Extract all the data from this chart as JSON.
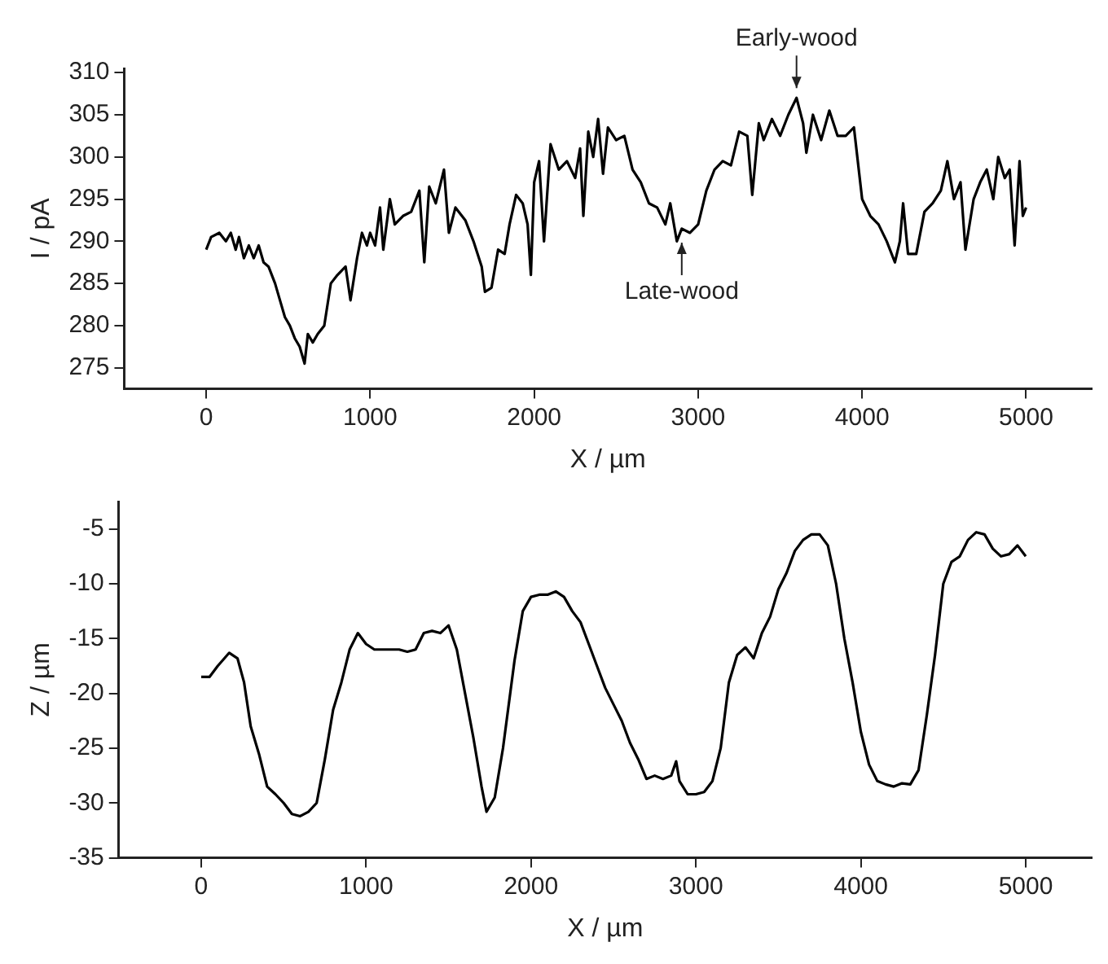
{
  "chart_data": [
    {
      "type": "line",
      "xlabel": "X / µm",
      "ylabel": "I / pA",
      "xlim": [
        -500,
        5400
      ],
      "xticks": [
        0,
        1000,
        2000,
        3000,
        4000,
        5000
      ],
      "ylim": [
        272.5,
        310.5
      ],
      "yticks": [
        275,
        280,
        285,
        290,
        295,
        300,
        305,
        310
      ],
      "grid": false,
      "legend": false,
      "marker": "none",
      "line_style": "solid",
      "annotations": [
        {
          "text": "Early-wood",
          "x": 3600,
          "y": 307
        },
        {
          "text": "Late-wood",
          "x": 2900,
          "y": 291
        }
      ],
      "series": [
        {
          "color": "#000000",
          "x": [
            0,
            30,
            80,
            120,
            150,
            180,
            200,
            230,
            260,
            290,
            320,
            350,
            380,
            420,
            450,
            480,
            510,
            540,
            570,
            600,
            620,
            650,
            680,
            720,
            760,
            800,
            850,
            880,
            920,
            950,
            980,
            1000,
            1030,
            1060,
            1080,
            1120,
            1150,
            1200,
            1250,
            1300,
            1330,
            1360,
            1400,
            1450,
            1480,
            1520,
            1580,
            1630,
            1680,
            1700,
            1740,
            1780,
            1820,
            1850,
            1890,
            1930,
            1960,
            1980,
            2000,
            2030,
            2060,
            2100,
            2150,
            2200,
            2250,
            2280,
            2300,
            2330,
            2360,
            2390,
            2420,
            2450,
            2500,
            2550,
            2600,
            2650,
            2700,
            2750,
            2800,
            2830,
            2870,
            2900,
            2950,
            3000,
            3050,
            3100,
            3150,
            3200,
            3250,
            3300,
            3330,
            3370,
            3400,
            3450,
            3500,
            3550,
            3600,
            3640,
            3660,
            3700,
            3750,
            3800,
            3850,
            3900,
            3950,
            4000,
            4050,
            4100,
            4150,
            4200,
            4230,
            4250,
            4280,
            4330,
            4380,
            4430,
            4480,
            4520,
            4560,
            4600,
            4630,
            4680,
            4720,
            4760,
            4800,
            4830,
            4870,
            4900,
            4930,
            4960,
            4980,
            5000
          ],
          "values": [
            289,
            290.5,
            291,
            290,
            291,
            289,
            290.5,
            288,
            289.5,
            288,
            289.5,
            287.5,
            287,
            285,
            283,
            281,
            280,
            278.5,
            277.5,
            275.5,
            279,
            278,
            279,
            280,
            285,
            286,
            287,
            283,
            288,
            291,
            289.5,
            291,
            289.5,
            294,
            289,
            295,
            292,
            293,
            293.5,
            296,
            287.5,
            296.5,
            294.5,
            298.5,
            291,
            294,
            292.5,
            290,
            287,
            284,
            284.5,
            289,
            288.5,
            292,
            295.5,
            294.5,
            292,
            286,
            297,
            299.5,
            290,
            301.5,
            298.5,
            299.5,
            297.5,
            301,
            293,
            303,
            300,
            304.5,
            298,
            303.5,
            302,
            302.5,
            298.5,
            297,
            294.5,
            294,
            292,
            294.5,
            290,
            291.5,
            291,
            292,
            296,
            298.5,
            299.5,
            299,
            303,
            302.5,
            295.5,
            304,
            302,
            304.5,
            302.5,
            305,
            307,
            304,
            300.5,
            305,
            302,
            305.5,
            302.5,
            302.5,
            303.5,
            295,
            293,
            292,
            290,
            287.5,
            290,
            294.5,
            288.5,
            288.5,
            293.5,
            294.5,
            296,
            299.5,
            295,
            297,
            289,
            295,
            297,
            298.5,
            295,
            300,
            297.5,
            298.5,
            289.5,
            299.5,
            293,
            294
          ]
        }
      ]
    },
    {
      "type": "line",
      "xlabel": "X / µm",
      "ylabel": "Z / µm",
      "xlim": [
        -500,
        5400
      ],
      "xticks": [
        0,
        1000,
        2000,
        3000,
        4000,
        5000
      ],
      "ylim": [
        -35,
        -2.5
      ],
      "yticks": [
        -35,
        -30,
        -25,
        -20,
        -15,
        -10,
        -5
      ],
      "grid": false,
      "legend": false,
      "marker": "none",
      "line_style": "solid",
      "series": [
        {
          "color": "#000000",
          "x": [
            0,
            50,
            100,
            170,
            220,
            260,
            300,
            350,
            400,
            450,
            500,
            550,
            600,
            650,
            700,
            750,
            800,
            850,
            900,
            950,
            1000,
            1050,
            1100,
            1150,
            1200,
            1250,
            1300,
            1350,
            1400,
            1450,
            1500,
            1550,
            1600,
            1650,
            1700,
            1730,
            1780,
            1830,
            1900,
            1950,
            2000,
            2050,
            2100,
            2150,
            2200,
            2250,
            2300,
            2350,
            2400,
            2450,
            2500,
            2550,
            2600,
            2650,
            2700,
            2750,
            2800,
            2850,
            2880,
            2900,
            2950,
            3000,
            3050,
            3100,
            3150,
            3200,
            3250,
            3300,
            3350,
            3400,
            3450,
            3500,
            3550,
            3600,
            3650,
            3700,
            3750,
            3800,
            3850,
            3900,
            3950,
            4000,
            4050,
            4100,
            4150,
            4200,
            4250,
            4300,
            4350,
            4400,
            4450,
            4500,
            4550,
            4600,
            4650,
            4700,
            4750,
            4800,
            4850,
            4900,
            4950,
            5000
          ],
          "values": [
            -18.5,
            -18.5,
            -17.5,
            -16.3,
            -16.8,
            -19,
            -23,
            -25.5,
            -28.5,
            -29.2,
            -30,
            -31,
            -31.2,
            -30.8,
            -30,
            -26,
            -21.5,
            -19,
            -16,
            -14.5,
            -15.5,
            -16,
            -16,
            -16,
            -16,
            -16.2,
            -16,
            -14.5,
            -14.3,
            -14.5,
            -13.8,
            -16,
            -20,
            -24,
            -28.5,
            -30.8,
            -29.5,
            -25,
            -17,
            -12.5,
            -11.2,
            -11,
            -11,
            -10.7,
            -11.2,
            -12.5,
            -13.5,
            -15.5,
            -17.5,
            -19.5,
            -21,
            -22.5,
            -24.5,
            -26,
            -27.8,
            -27.5,
            -27.8,
            -27.5,
            -26.2,
            -28,
            -29.2,
            -29.2,
            -29,
            -28,
            -25,
            -19,
            -16.5,
            -15.8,
            -16.8,
            -14.5,
            -13,
            -10.5,
            -9,
            -7,
            -6,
            -5.5,
            -5.5,
            -6.5,
            -10,
            -15,
            -19,
            -23.5,
            -26.5,
            -28,
            -28.3,
            -28.5,
            -28.2,
            -28.3,
            -27,
            -22,
            -16.5,
            -10,
            -8,
            -7.5,
            -6,
            -5.3,
            -5.5,
            -6.8,
            -7.5,
            -7.3,
            -6.5,
            -7.5
          ]
        }
      ]
    }
  ]
}
